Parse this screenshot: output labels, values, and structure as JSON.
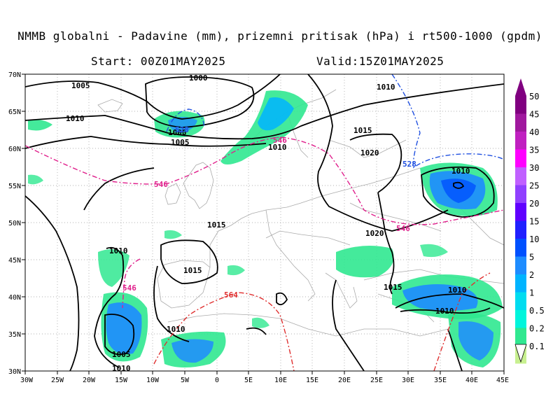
{
  "header": {
    "title": "NMMB globalni - Padavine (mm), prizemni pritisak (hPa) i rt500-1000 (gpdm)",
    "start": "Start: 00Z01MAY2025",
    "valid": "Valid:15Z01MAY2025"
  },
  "axes": {
    "lon_labels": [
      "30W",
      "25W",
      "20W",
      "15W",
      "10W",
      "5W",
      "0",
      "5E",
      "10E",
      "15E",
      "20E",
      "25E",
      "30E",
      "35E",
      "40E",
      "45E"
    ],
    "lat_labels": [
      "70N",
      "65N",
      "60N",
      "55N",
      "50N",
      "45N",
      "40N",
      "35N",
      "30N"
    ]
  },
  "colorbar": {
    "levels": [
      "50",
      "45",
      "40",
      "35",
      "30",
      "25",
      "20",
      "15",
      "10",
      "5",
      "2",
      "1",
      "0.5",
      "0.2",
      "0.1"
    ],
    "colors": [
      "#800080",
      "#a0189e",
      "#c020c0",
      "#ff00ff",
      "#c060ff",
      "#9040ff",
      "#6000ff",
      "#2020ff",
      "#0050ff",
      "#1e8cff",
      "#00b4ff",
      "#00dcf0",
      "#00f5dc",
      "#30e890",
      "#c8f090"
    ]
  },
  "isobars": [
    {
      "label": "1005"
    },
    {
      "label": "1010"
    },
    {
      "label": "1000"
    },
    {
      "label": "1010"
    },
    {
      "label": "1000"
    },
    {
      "label": "1005"
    },
    {
      "label": "1010"
    },
    {
      "label": "1015"
    },
    {
      "label": "1020"
    },
    {
      "label": "1010"
    },
    {
      "label": "1015"
    },
    {
      "label": "1010"
    },
    {
      "label": "1015"
    },
    {
      "label": "1020"
    },
    {
      "label": "1015"
    },
    {
      "label": "1010"
    },
    {
      "label": "1010"
    },
    {
      "label": "1010"
    },
    {
      "label": "1005"
    },
    {
      "label": "1010"
    }
  ],
  "thickness_labels": [
    {
      "label": "528",
      "color": "#2050e0"
    },
    {
      "label": "546",
      "color": "#e0208c"
    },
    {
      "label": "546",
      "color": "#e0208c"
    },
    {
      "label": "528",
      "color": "#2050e0"
    },
    {
      "label": "546",
      "color": "#e0208c"
    },
    {
      "label": "546",
      "color": "#e0208c"
    },
    {
      "label": "564",
      "color": "#e03030"
    }
  ]
}
